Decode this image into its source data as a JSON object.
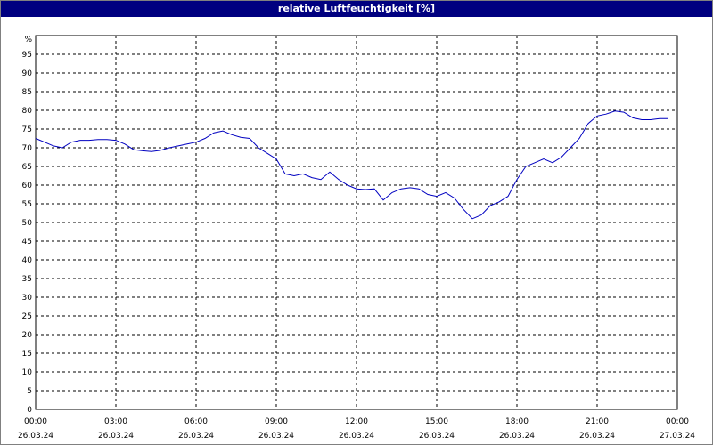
{
  "window": {
    "title": "relative Luftfeuchtigkeit [%]"
  },
  "chart_data": {
    "type": "line",
    "title": "relative Luftfeuchtigkeit [%]",
    "ylabel": "%",
    "xlabel": "",
    "ylim": [
      0,
      100
    ],
    "y_ticks": [
      0,
      5,
      10,
      15,
      20,
      25,
      30,
      35,
      40,
      45,
      50,
      55,
      60,
      65,
      70,
      75,
      80,
      85,
      90,
      95
    ],
    "x_ticks": [
      {
        "time": "00:00",
        "date": "26.03.24"
      },
      {
        "time": "03:00",
        "date": "26.03.24"
      },
      {
        "time": "06:00",
        "date": "26.03.24"
      },
      {
        "time": "09:00",
        "date": "26.03.24"
      },
      {
        "time": "12:00",
        "date": "26.03.24"
      },
      {
        "time": "15:00",
        "date": "26.03.24"
      },
      {
        "time": "18:00",
        "date": "26.03.24"
      },
      {
        "time": "21:00",
        "date": "26.03.24"
      },
      {
        "time": "00:00",
        "date": "27.03.24"
      }
    ],
    "grid": true,
    "series": [
      {
        "color": "#0000c0",
        "x": [
          "00:00",
          "00:20",
          "00:40",
          "01:00",
          "01:20",
          "01:40",
          "02:00",
          "02:20",
          "02:40",
          "03:00",
          "03:20",
          "03:40",
          "04:00",
          "04:20",
          "04:40",
          "05:00",
          "05:20",
          "05:40",
          "06:00",
          "06:20",
          "06:40",
          "07:00",
          "07:20",
          "07:40",
          "08:00",
          "08:20",
          "08:40",
          "09:00",
          "09:20",
          "09:40",
          "10:00",
          "10:20",
          "10:40",
          "11:00",
          "11:20",
          "11:40",
          "12:00",
          "12:20",
          "12:40",
          "13:00",
          "13:20",
          "13:40",
          "14:00",
          "14:20",
          "14:40",
          "15:00",
          "15:20",
          "15:40",
          "16:00",
          "16:20",
          "16:40",
          "17:00",
          "17:20",
          "17:40",
          "18:00",
          "18:20",
          "18:40",
          "19:00",
          "19:20",
          "19:40",
          "20:00",
          "20:20",
          "20:40",
          "21:00",
          "21:20",
          "21:40",
          "22:00",
          "22:20",
          "22:40",
          "23:00",
          "23:20",
          "23:40"
        ],
        "values": [
          72.5,
          71.5,
          70.5,
          70,
          71.5,
          72,
          72,
          72.2,
          72.2,
          72,
          71,
          69.5,
          69.2,
          69,
          69.3,
          70,
          70.5,
          71,
          71.5,
          72.5,
          74,
          74.5,
          73.5,
          72.8,
          72.5,
          70,
          68.5,
          67,
          63,
          62.5,
          63,
          62,
          61.5,
          63.5,
          61.5,
          60,
          59,
          58.8,
          59,
          56,
          58,
          59,
          59.3,
          59,
          57.5,
          57,
          58,
          56.5,
          53.5,
          51,
          52,
          54.5,
          55.5,
          57,
          61.5,
          65,
          66,
          67,
          66,
          67.5,
          70,
          72.5,
          76.5,
          78.5,
          79,
          79.8,
          79.5,
          78,
          77.5,
          77.5,
          77.8,
          77.8
        ]
      }
    ]
  }
}
